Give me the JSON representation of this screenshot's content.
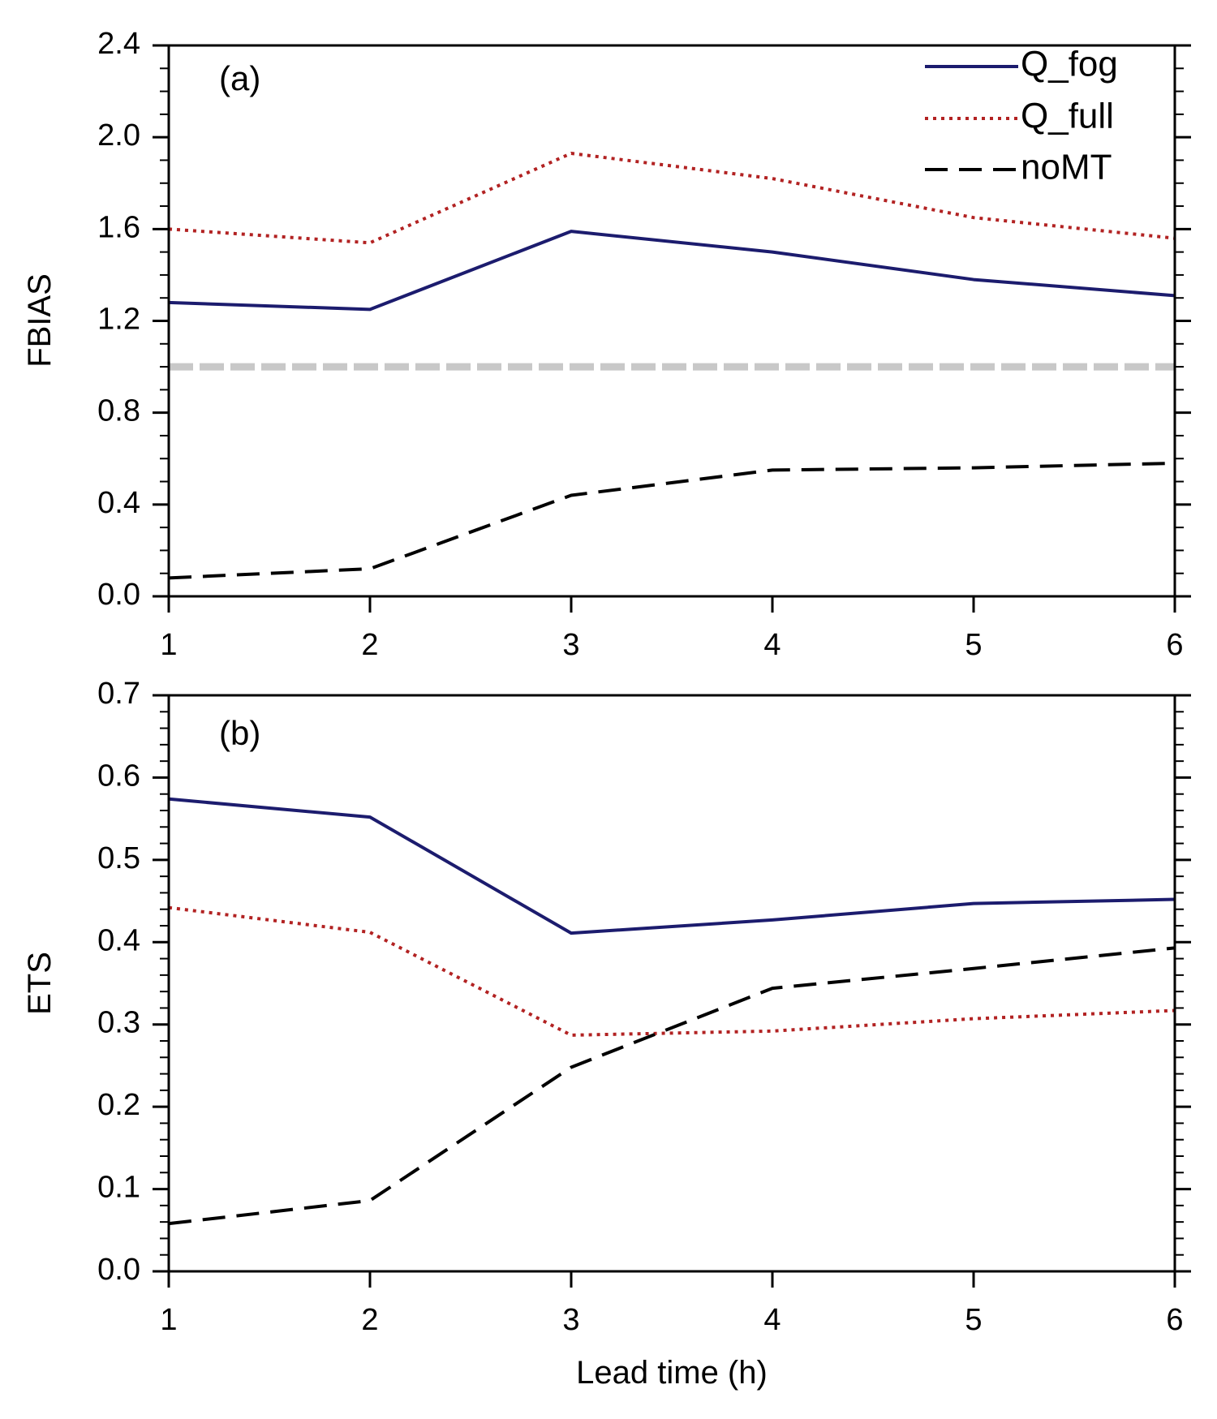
{
  "chart_data": [
    {
      "type": "line",
      "panel_label": "(a)",
      "ylabel": "FBIAS",
      "xlabel": "",
      "x": [
        1,
        2,
        3,
        4,
        5,
        6
      ],
      "xtick_labels": [
        "1",
        "2",
        "3",
        "4",
        "5",
        "6"
      ],
      "xlim": [
        1,
        6
      ],
      "ylim": [
        0,
        2.4
      ],
      "ytick_labels": [
        "0.0",
        "0.4",
        "0.8",
        "1.2",
        "1.6",
        "2.0",
        "2.4"
      ],
      "reference_line": {
        "y": 1.0,
        "color": "#c8c8c8"
      },
      "legend": {
        "position": "top-right",
        "entries": [
          "Q_fog",
          "Q_full",
          "noMT"
        ]
      },
      "series": [
        {
          "name": "Q_fog",
          "style": "solid",
          "color": "#1c1c6e",
          "values": [
            1.28,
            1.25,
            1.59,
            1.5,
            1.38,
            1.31
          ]
        },
        {
          "name": "Q_full",
          "style": "dotted",
          "color": "#b22222",
          "values": [
            1.6,
            1.54,
            1.93,
            1.82,
            1.65,
            1.56
          ]
        },
        {
          "name": "noMT",
          "style": "dashed",
          "color": "#000000",
          "values": [
            0.08,
            0.12,
            0.44,
            0.55,
            0.56,
            0.58
          ]
        }
      ]
    },
    {
      "type": "line",
      "panel_label": "(b)",
      "ylabel": "ETS",
      "xlabel": "Lead time (h)",
      "x": [
        1,
        2,
        3,
        4,
        5,
        6
      ],
      "xtick_labels": [
        "1",
        "2",
        "3",
        "4",
        "5",
        "6"
      ],
      "xlim": [
        1,
        6
      ],
      "ylim": [
        0,
        0.7
      ],
      "ytick_labels": [
        "0.0",
        "0.1",
        "0.2",
        "0.3",
        "0.4",
        "0.5",
        "0.6",
        "0.7"
      ],
      "series": [
        {
          "name": "Q_fog",
          "style": "solid",
          "color": "#1c1c6e",
          "values": [
            0.574,
            0.552,
            0.411,
            0.427,
            0.447,
            0.452
          ]
        },
        {
          "name": "Q_full",
          "style": "dotted",
          "color": "#b22222",
          "values": [
            0.442,
            0.412,
            0.287,
            0.292,
            0.307,
            0.317
          ]
        },
        {
          "name": "noMT",
          "style": "dashed",
          "color": "#000000",
          "values": [
            0.058,
            0.086,
            0.248,
            0.344,
            0.368,
            0.393
          ]
        }
      ]
    }
  ]
}
